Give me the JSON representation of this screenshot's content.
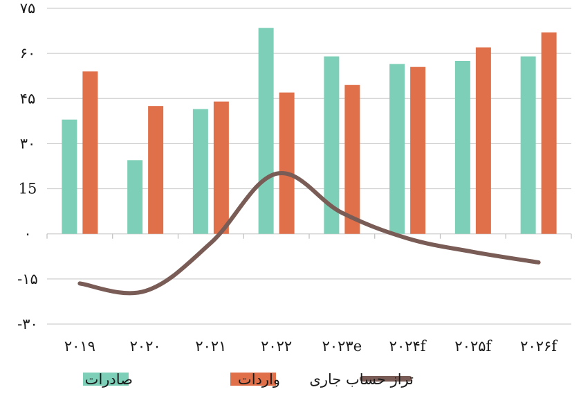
{
  "chart_data": {
    "type": "bar",
    "categories": [
      "۲۰۱۹",
      "۲۰۲۰",
      "۲۰۲۱",
      "۲۰۲۲",
      "۲۰۲۳e",
      "۲۰۲۴f",
      "۲۰۲۵f",
      "۲۰۲۶f"
    ],
    "series": [
      {
        "name": "صادرات",
        "type": "bar",
        "color": "#7ecfb8",
        "values": [
          38,
          24.5,
          41.5,
          68.5,
          59,
          56.5,
          57.5,
          59
        ]
      },
      {
        "name": "واردات",
        "type": "bar",
        "color": "#e0704a",
        "values": [
          54,
          42.5,
          44,
          47,
          49.5,
          55.5,
          62,
          67
        ]
      },
      {
        "name": "تراز حساب جاری",
        "type": "line",
        "color": "#7a5c56",
        "values": [
          -16.5,
          -19,
          -3,
          20,
          7,
          -1.5,
          -6,
          -9.5
        ]
      }
    ],
    "ylim": [
      -30,
      75
    ],
    "yticks": [
      -30,
      -15,
      0,
      15,
      30,
      45,
      60,
      75
    ],
    "ytick_labels": [
      "-۳۰",
      "-۱۵",
      "۰",
      "15",
      "۳۰",
      "۴۵",
      "۶۰",
      "۷۵"
    ],
    "grid": true,
    "legend_position": "bottom"
  }
}
